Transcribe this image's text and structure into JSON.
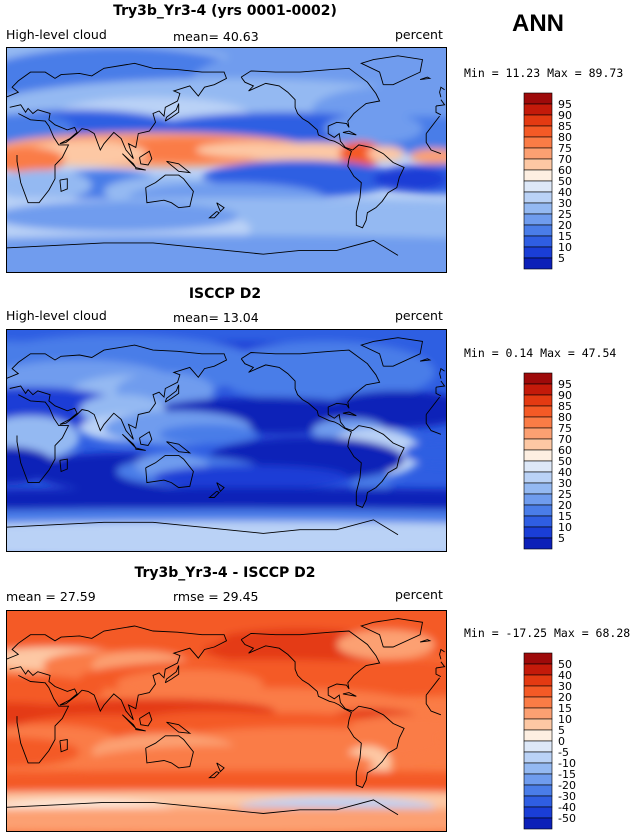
{
  "season": "ANN",
  "units": "percent",
  "chart_data": [
    {
      "type": "heatmap",
      "title": "Try3b_Yr3-4 (yrs 0001-0002)",
      "variable": "High-level cloud",
      "stat1": "mean=  40.63",
      "stat2": "",
      "units": "percent",
      "minmax": "Min =  11.23  Max =  89.73",
      "colorbar": {
        "levels": [
          "95",
          "90",
          "85",
          "80",
          "75",
          "70",
          "60",
          "50",
          "40",
          "30",
          "25",
          "20",
          "15",
          "10",
          "5"
        ],
        "colors": [
          "#9e0a0a",
          "#c41a0a",
          "#e43a12",
          "#f45a26",
          "#fa7c46",
          "#fca072",
          "#fdc8a4",
          "#fdefe2",
          "#dde8f8",
          "#bad2f6",
          "#94b9f2",
          "#6f9cee",
          "#4a7de8",
          "#2f5ee2",
          "#1a3ed6",
          "#0c20b8"
        ]
      },
      "mean": 40.63,
      "min": 11.23,
      "max": 89.73
    },
    {
      "type": "heatmap",
      "title": "ISCCP D2",
      "variable": "High-level cloud",
      "stat1": "mean=  13.04",
      "stat2": "",
      "units": "percent",
      "minmax": "Min =   0.14  Max =  47.54",
      "colorbar": {
        "levels": [
          "95",
          "90",
          "85",
          "80",
          "75",
          "70",
          "60",
          "50",
          "40",
          "30",
          "25",
          "20",
          "15",
          "10",
          "5"
        ],
        "colors": [
          "#9e0a0a",
          "#c41a0a",
          "#e43a12",
          "#f45a26",
          "#fa7c46",
          "#fca072",
          "#fdc8a4",
          "#fdefe2",
          "#dde8f8",
          "#bad2f6",
          "#94b9f2",
          "#6f9cee",
          "#4a7de8",
          "#2f5ee2",
          "#1a3ed6",
          "#0c20b8"
        ]
      },
      "mean": 13.04,
      "min": 0.14,
      "max": 47.54
    },
    {
      "type": "heatmap",
      "title": "Try3b_Yr3-4 - ISCCP D2",
      "variable": "",
      "stat1": "mean =  27.59",
      "stat2": "rmse =  29.45",
      "units": "percent",
      "minmax": "Min = -17.25  Max =  68.28",
      "colorbar": {
        "levels": [
          "50",
          "40",
          "30",
          "20",
          "15",
          "10",
          "5",
          "0",
          "-5",
          "-10",
          "-15",
          "-20",
          "-30",
          "-40",
          "-50"
        ],
        "colors": [
          "#9e0a0a",
          "#c41a0a",
          "#e43a12",
          "#f45a26",
          "#fa7c46",
          "#fca072",
          "#fdc8a4",
          "#fdefe2",
          "#dde8f8",
          "#bad2f6",
          "#94b9f2",
          "#6f9cee",
          "#4a7de8",
          "#2f5ee2",
          "#1a3ed6",
          "#0c20b8"
        ]
      },
      "mean": 27.59,
      "rmse": 29.45,
      "min": -17.25,
      "max": 68.28
    }
  ]
}
